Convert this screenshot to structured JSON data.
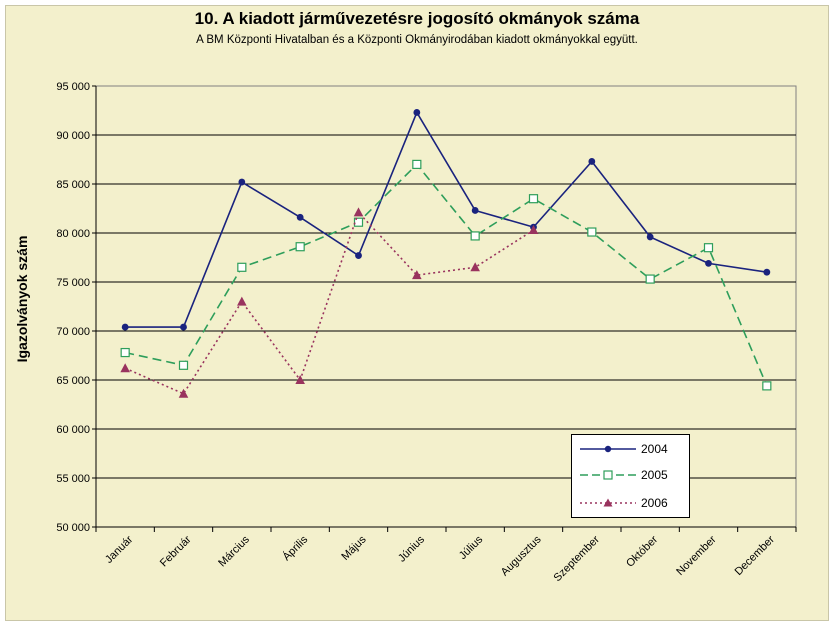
{
  "chart_data": {
    "type": "line",
    "title": "10. A  kiadott járművezetésre  jogosító okmányok száma",
    "subtitle": "A BM Központi Hivatalban és a Központi Okmányirodában kiadott okmányokkal együtt.",
    "ylabel": "Igazolványok szám",
    "xlabel": "",
    "ylim": [
      50000,
      95000
    ],
    "ytick_values": [
      50000,
      55000,
      60000,
      65000,
      70000,
      75000,
      80000,
      85000,
      90000,
      95000
    ],
    "ytick_labels": [
      "50 000",
      "55 000",
      "60 000",
      "65 000",
      "70 000",
      "75 000",
      "80 000",
      "85 000",
      "90 000",
      "95 000"
    ],
    "grid": "horizontal",
    "legend_position": "bottom-right",
    "categories": [
      "Január",
      "Február",
      "Március",
      "Április",
      "Május",
      "Június",
      "Július",
      "Augusztus",
      "Szeptember",
      "Október",
      "November",
      "December"
    ],
    "series": [
      {
        "name": "2004",
        "color": "#1a237e",
        "style": "solid",
        "marker": "circle",
        "values": [
          70400,
          70400,
          85200,
          81600,
          77700,
          92300,
          82300,
          80600,
          87300,
          79600,
          76900,
          76000
        ]
      },
      {
        "name": "2005",
        "color": "#2e9e5b",
        "style": "dashed",
        "marker": "square",
        "values": [
          67800,
          66500,
          76500,
          78600,
          81100,
          87000,
          79700,
          83500,
          80100,
          75300,
          78500,
          64400
        ]
      },
      {
        "name": "2006",
        "color": "#99335e",
        "style": "dotted",
        "marker": "triangle",
        "values": [
          66200,
          63600,
          73000,
          65000,
          82100,
          75700,
          76500,
          80300,
          null,
          null,
          null,
          null
        ]
      }
    ]
  }
}
